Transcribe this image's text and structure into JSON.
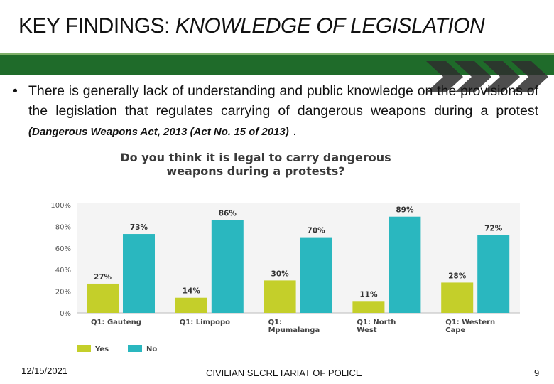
{
  "slide": {
    "title_lead": "KEY FINDINGS:",
    "title_rest": "KNOWLEDGE OF LEGISLATION",
    "bullet_symbol": "•",
    "bullet_text": "There is generally lack of understanding and public knowledge on the provisions of the legislation that regulates carrying of dangerous weapons during a protest",
    "bullet_act": "(Dangerous Weapons Act, 2013 (Act No. 15 of 2013)",
    "bullet_end": ".",
    "footer_date": "12/15/2021",
    "footer_org": "CIVILIAN SECRETARIAT OF POLICE",
    "footer_page": "9"
  },
  "colors": {
    "yes": "#c4cf2a",
    "no": "#2ab7bf",
    "green_band": "#1f6b2a"
  },
  "chart_data": {
    "type": "bar",
    "title_line1": "Do you think it is legal to carry dangerous",
    "title_line2": "weapons during a protests?",
    "categories": [
      [
        "Q1: Gauteng"
      ],
      [
        "Q1: Limpopo"
      ],
      [
        "Q1:",
        "Mpumalanga"
      ],
      [
        "Q1: North",
        "West"
      ],
      [
        "Q1: Western",
        "Cape"
      ]
    ],
    "series": [
      {
        "name": "Yes",
        "values": [
          27,
          14,
          30,
          11,
          28
        ],
        "labels": [
          "27%",
          "14%",
          "30%",
          "11%",
          "28%"
        ]
      },
      {
        "name": "No",
        "values": [
          73,
          86,
          70,
          89,
          72
        ],
        "labels": [
          "73%",
          "86%",
          "70%",
          "89%",
          "72%"
        ]
      }
    ],
    "yticks": [
      "0%",
      "20%",
      "40%",
      "60%",
      "80%",
      "100%"
    ],
    "ylim": [
      0,
      100
    ],
    "legend_position": "bottom-left",
    "grid": false
  }
}
